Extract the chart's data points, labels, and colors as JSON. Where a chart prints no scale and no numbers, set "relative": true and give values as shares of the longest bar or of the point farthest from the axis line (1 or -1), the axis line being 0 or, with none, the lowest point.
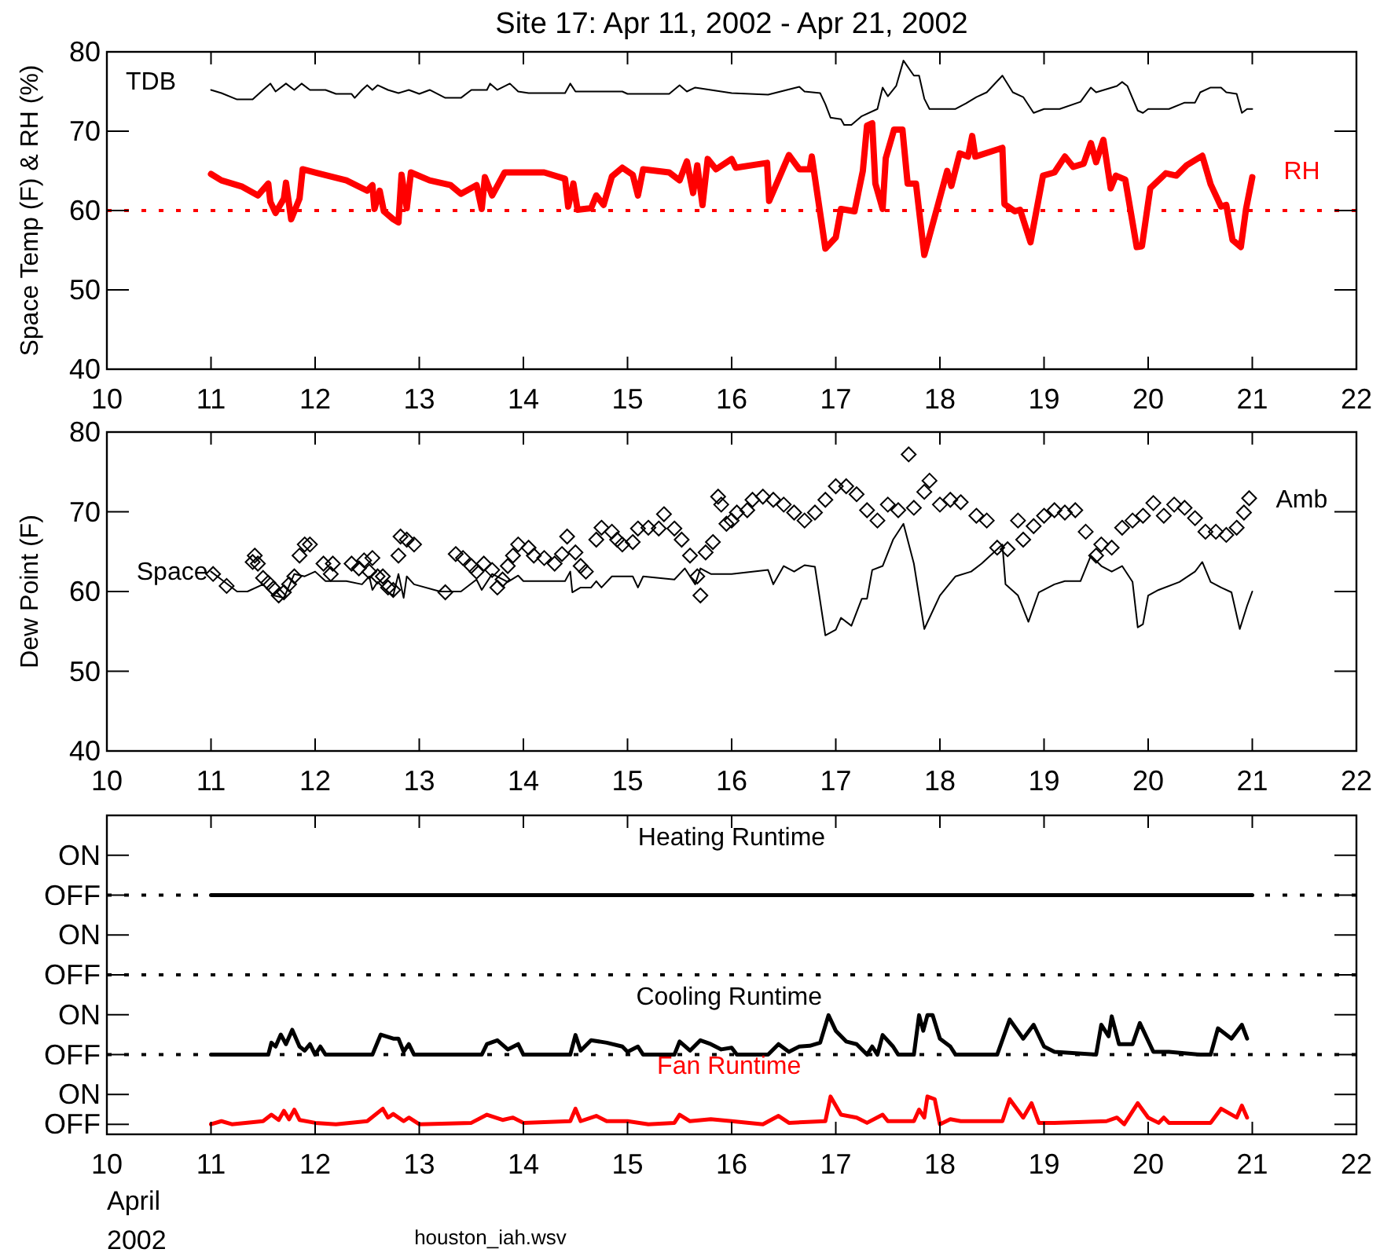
{
  "chart_data": [
    {
      "type": "line",
      "title": "Site 17: Apr 11, 2002 - Apr 21, 2002",
      "ylabel": "Space Temp (F) & RH (%)",
      "xlim": [
        10,
        22
      ],
      "xticks": [
        10,
        11,
        12,
        13,
        14,
        15,
        16,
        17,
        18,
        19,
        20,
        21,
        22
      ],
      "ylim": [
        40,
        80
      ],
      "yticks": [
        40,
        50,
        60,
        70,
        80
      ],
      "ref_lines": [
        {
          "axis": "y",
          "value": 60,
          "color": "#ff0000",
          "line_style": "dotted"
        }
      ],
      "series": [
        {
          "name": "TDB",
          "color": "#000000",
          "x": [
            11.0,
            11.1,
            11.25,
            11.4,
            11.5,
            11.57,
            11.62,
            11.72,
            11.8,
            11.87,
            11.95,
            12.1,
            12.2,
            12.35,
            12.38,
            12.45,
            12.5,
            12.55,
            12.6,
            12.7,
            12.8,
            12.9,
            13.0,
            13.1,
            13.25,
            13.4,
            13.5,
            13.65,
            13.68,
            13.75,
            13.87,
            13.95,
            14.05,
            14.4,
            14.45,
            14.5,
            14.95,
            15.0,
            15.4,
            15.5,
            15.57,
            15.65,
            16.0,
            16.35,
            16.5,
            16.65,
            16.7,
            16.85,
            16.9,
            16.95,
            17.05,
            17.08,
            17.15,
            17.25,
            17.4,
            17.45,
            17.5,
            17.58,
            17.65,
            17.75,
            17.8,
            17.85,
            17.9,
            18.15,
            18.25,
            18.35,
            18.45,
            18.6,
            18.7,
            18.8,
            18.9,
            19.0,
            19.15,
            19.35,
            19.45,
            19.5,
            19.7,
            19.75,
            19.8,
            19.9,
            19.95,
            20.0,
            20.2,
            20.35,
            20.45,
            20.5,
            20.6,
            20.7,
            20.75,
            20.85,
            20.9,
            20.95,
            21.0
          ],
          "values": [
            75.2,
            74.8,
            74.0,
            74.0,
            75.2,
            76.0,
            75.0,
            76.0,
            75.2,
            76.0,
            75.2,
            75.2,
            74.7,
            74.7,
            74.2,
            75.2,
            75.8,
            75.2,
            75.8,
            75.2,
            74.8,
            75.2,
            74.7,
            75.2,
            74.2,
            74.2,
            75.2,
            75.2,
            76.0,
            75.2,
            76.0,
            75.0,
            74.8,
            74.8,
            76.0,
            75.0,
            75.0,
            74.7,
            74.7,
            75.8,
            75.0,
            75.5,
            74.8,
            74.6,
            75.1,
            75.6,
            75.0,
            74.8,
            73.4,
            71.7,
            71.5,
            70.8,
            70.8,
            71.9,
            72.8,
            75.5,
            74.4,
            75.7,
            78.9,
            77.0,
            77.0,
            74.1,
            72.8,
            72.8,
            73.5,
            74.3,
            74.9,
            77.0,
            74.9,
            74.3,
            72.3,
            72.8,
            72.8,
            73.7,
            75.5,
            74.9,
            75.7,
            76.2,
            75.7,
            72.6,
            72.3,
            72.8,
            72.8,
            73.6,
            73.6,
            74.9,
            75.5,
            75.5,
            74.9,
            74.7,
            72.3,
            72.8,
            72.8
          ]
        },
        {
          "name": "RH",
          "color": "#ff0000",
          "x": [
            11.0,
            11.1,
            11.3,
            11.45,
            11.55,
            11.57,
            11.62,
            11.7,
            11.72,
            11.77,
            11.85,
            11.88,
            12.0,
            12.3,
            12.5,
            12.55,
            12.57,
            12.62,
            12.66,
            12.75,
            12.8,
            12.83,
            12.88,
            12.92,
            13.1,
            13.3,
            13.4,
            13.55,
            13.6,
            13.63,
            13.7,
            13.82,
            14.2,
            14.4,
            14.43,
            14.48,
            14.52,
            14.65,
            14.7,
            14.77,
            14.85,
            14.95,
            15.05,
            15.1,
            15.15,
            15.4,
            15.5,
            15.57,
            15.63,
            15.67,
            15.72,
            15.77,
            15.85,
            16.0,
            16.04,
            16.34,
            16.36,
            16.55,
            16.65,
            16.75,
            16.77,
            16.9,
            17.0,
            17.05,
            17.18,
            17.26,
            17.3,
            17.35,
            17.38,
            17.45,
            17.48,
            17.56,
            17.64,
            17.69,
            17.77,
            17.85,
            18.07,
            18.11,
            18.19,
            18.27,
            18.31,
            18.34,
            18.6,
            18.62,
            18.72,
            18.77,
            18.87,
            18.99,
            19.1,
            19.2,
            19.28,
            19.38,
            19.45,
            19.5,
            19.57,
            19.64,
            19.69,
            19.78,
            19.89,
            19.94,
            20.02,
            20.17,
            20.27,
            20.37,
            20.52,
            20.6,
            20.7,
            20.75,
            20.81,
            20.89,
            20.94,
            21.0
          ],
          "values": [
            64.6,
            63.8,
            63.0,
            61.9,
            63.4,
            61.1,
            59.7,
            61.5,
            63.5,
            58.9,
            61.5,
            65.2,
            64.8,
            63.8,
            62.5,
            63.2,
            60.2,
            62.5,
            59.9,
            58.9,
            58.5,
            64.5,
            60.3,
            64.8,
            63.8,
            63.2,
            62.1,
            63.2,
            60.2,
            64.2,
            61.9,
            64.8,
            64.8,
            64.0,
            60.5,
            63.4,
            60.1,
            60.3,
            61.9,
            60.7,
            64.3,
            65.4,
            64.5,
            61.9,
            65.2,
            64.8,
            63.8,
            66.2,
            62.2,
            65.7,
            60.7,
            66.5,
            65.2,
            66.5,
            65.4,
            66.0,
            61.2,
            67.0,
            65.2,
            65.2,
            66.8,
            55.2,
            56.6,
            60.2,
            59.9,
            65.0,
            70.7,
            71.0,
            63.4,
            60.2,
            66.6,
            70.2,
            70.2,
            63.4,
            63.4,
            54.4,
            65.0,
            63.1,
            67.2,
            66.8,
            69.4,
            66.8,
            67.9,
            60.8,
            59.9,
            60.1,
            56.0,
            64.4,
            64.8,
            66.8,
            65.5,
            65.9,
            68.5,
            66.1,
            68.9,
            62.8,
            64.4,
            63.9,
            55.4,
            55.5,
            62.8,
            64.7,
            64.4,
            65.7,
            66.9,
            63.3,
            60.5,
            60.7,
            56.3,
            55.4,
            60.2,
            64.2
          ]
        }
      ]
    },
    {
      "type": "line",
      "ylabel": "Dew Point (F)",
      "xlim": [
        10,
        22
      ],
      "xticks": [
        10,
        11,
        12,
        13,
        14,
        15,
        16,
        17,
        18,
        19,
        20,
        21,
        22
      ],
      "ylim": [
        40,
        80
      ],
      "yticks": [
        40,
        50,
        60,
        70,
        80
      ],
      "series": [
        {
          "name": "Space",
          "color": "#000000",
          "x": [
            11.0,
            11.1,
            11.25,
            11.35,
            11.5,
            11.6,
            11.7,
            11.8,
            11.9,
            12.0,
            12.1,
            12.3,
            12.45,
            12.52,
            12.55,
            12.6,
            12.7,
            12.75,
            12.8,
            12.85,
            12.88,
            12.95,
            13.2,
            13.4,
            13.55,
            13.6,
            13.7,
            13.85,
            13.95,
            14.0,
            14.4,
            14.45,
            14.47,
            14.55,
            14.65,
            14.7,
            14.75,
            14.85,
            15.05,
            15.1,
            15.15,
            15.45,
            15.55,
            15.65,
            15.7,
            15.8,
            16.0,
            16.35,
            16.4,
            16.5,
            16.6,
            16.7,
            16.8,
            16.9,
            17.0,
            17.05,
            17.15,
            17.25,
            17.3,
            17.35,
            17.45,
            17.55,
            17.65,
            17.75,
            17.85,
            18.0,
            18.15,
            18.3,
            18.4,
            18.55,
            18.6,
            18.63,
            18.75,
            18.85,
            18.95,
            19.1,
            19.2,
            19.35,
            19.45,
            19.55,
            19.65,
            19.75,
            19.85,
            19.9,
            19.95,
            20.0,
            20.1,
            20.3,
            20.45,
            20.52,
            20.6,
            20.7,
            20.8,
            20.88,
            20.95,
            21.0
          ],
          "values": [
            62.5,
            61.5,
            60.0,
            60.0,
            60.9,
            59.5,
            59.2,
            62.2,
            61.9,
            62.5,
            61.3,
            61.3,
            60.9,
            61.9,
            60.2,
            61.2,
            59.9,
            59.5,
            62.2,
            59.2,
            61.9,
            60.9,
            60.0,
            60.0,
            61.5,
            60.2,
            62.2,
            61.2,
            62.0,
            61.3,
            61.3,
            62.5,
            59.9,
            60.5,
            60.5,
            61.3,
            60.5,
            61.9,
            61.9,
            60.5,
            61.9,
            61.5,
            62.9,
            60.9,
            62.9,
            62.2,
            62.2,
            62.7,
            60.9,
            63.2,
            62.5,
            63.3,
            63.1,
            54.5,
            55.2,
            56.7,
            55.7,
            59.1,
            59.1,
            62.7,
            63.2,
            66.5,
            68.5,
            63.5,
            55.3,
            59.5,
            61.9,
            62.5,
            63.5,
            65.3,
            65.9,
            60.9,
            59.5,
            56.2,
            59.9,
            60.9,
            61.3,
            61.3,
            64.5,
            63.2,
            62.5,
            63.2,
            61.2,
            55.5,
            55.9,
            59.5,
            60.2,
            61.2,
            62.5,
            63.7,
            61.2,
            60.5,
            59.9,
            55.3,
            58.2,
            60.0
          ]
        },
        {
          "name": "Amb",
          "type": "scatter",
          "marker": "diamond",
          "color": "#000000",
          "x": [
            11.02,
            11.15,
            11.4,
            11.42,
            11.45,
            11.5,
            11.55,
            11.6,
            11.65,
            11.7,
            11.75,
            11.8,
            11.85,
            11.9,
            11.95,
            12.08,
            12.15,
            12.17,
            12.35,
            12.42,
            12.47,
            12.52,
            12.55,
            12.6,
            12.65,
            12.7,
            12.75,
            12.8,
            12.82,
            12.88,
            12.95,
            13.25,
            13.35,
            13.42,
            13.5,
            13.55,
            13.62,
            13.7,
            13.75,
            13.8,
            13.85,
            13.9,
            13.95,
            14.05,
            14.1,
            14.2,
            14.3,
            14.37,
            14.42,
            14.5,
            14.55,
            14.6,
            14.7,
            14.75,
            14.85,
            14.9,
            14.95,
            15.05,
            15.1,
            15.2,
            15.3,
            15.35,
            15.45,
            15.52,
            15.6,
            15.67,
            15.7,
            15.75,
            15.82,
            15.87,
            15.9,
            15.95,
            16.0,
            16.05,
            16.15,
            16.2,
            16.3,
            16.4,
            16.5,
            16.6,
            16.7,
            16.8,
            16.9,
            17.0,
            17.1,
            17.2,
            17.3,
            17.4,
            17.5,
            17.6,
            17.7,
            17.75,
            17.85,
            17.9,
            18.0,
            18.1,
            18.2,
            18.35,
            18.45,
            18.55,
            18.65,
            18.75,
            18.8,
            18.9,
            19.0,
            19.1,
            19.2,
            19.3,
            19.4,
            19.5,
            19.55,
            19.65,
            19.75,
            19.85,
            19.95,
            20.05,
            20.15,
            20.25,
            20.35,
            20.45,
            20.55,
            20.65,
            20.75,
            20.85,
            20.92,
            20.97
          ],
          "values": [
            62.2,
            60.7,
            63.7,
            64.5,
            63.5,
            61.7,
            61.1,
            60.4,
            59.5,
            59.9,
            60.9,
            61.9,
            64.5,
            65.9,
            65.9,
            63.5,
            62.2,
            63.5,
            63.5,
            62.9,
            63.9,
            62.5,
            64.2,
            61.9,
            61.9,
            60.5,
            60.2,
            64.5,
            66.9,
            66.5,
            65.9,
            59.9,
            64.7,
            64.2,
            63.2,
            62.5,
            63.5,
            62.7,
            60.5,
            61.5,
            63.2,
            64.5,
            65.9,
            65.5,
            64.5,
            64.2,
            63.5,
            64.7,
            66.9,
            64.9,
            63.2,
            62.5,
            66.5,
            68.0,
            67.5,
            66.5,
            65.9,
            66.2,
            67.9,
            68.0,
            67.9,
            69.7,
            67.9,
            66.5,
            64.5,
            61.9,
            59.5,
            64.9,
            66.2,
            71.9,
            70.9,
            68.5,
            68.9,
            69.9,
            70.2,
            71.5,
            71.9,
            71.5,
            70.9,
            69.9,
            68.9,
            69.9,
            71.5,
            73.2,
            73.2,
            72.2,
            70.2,
            68.9,
            70.9,
            70.2,
            77.2,
            70.5,
            72.5,
            73.9,
            70.9,
            71.5,
            71.2,
            69.5,
            68.9,
            65.5,
            65.3,
            68.9,
            66.5,
            68.2,
            69.5,
            70.2,
            69.9,
            70.2,
            67.5,
            64.5,
            65.9,
            65.5,
            68.0,
            68.9,
            69.5,
            71.1,
            69.5,
            70.9,
            70.5,
            69.2,
            67.5,
            67.5,
            67.1,
            68.0,
            69.9,
            71.7
          ]
        }
      ]
    },
    {
      "type": "line",
      "xlabel": "April 2002",
      "relative": true,
      "annotations": [
        "ON",
        "OFF",
        "ON",
        "OFF",
        "ON",
        "OFF",
        "ON",
        "OFF",
        "houston_iah.wsv"
      ],
      "xlim": [
        10,
        22
      ],
      "xticks": [
        10,
        11,
        12,
        13,
        14,
        15,
        16,
        17,
        18,
        19,
        20,
        21,
        22
      ],
      "ref_lines": [
        {
          "axis": "y",
          "value": 1,
          "color": "#000000",
          "line_style": "dotted"
        },
        {
          "axis": "y",
          "value": 0.667,
          "color": "#000000",
          "line_style": "dotted"
        },
        {
          "axis": "y",
          "value": 0.333,
          "color": "#000000",
          "line_style": "dotted"
        }
      ],
      "series": [
        {
          "name": "Heating Runtime",
          "color": "#000000",
          "x": [
            11,
            21
          ],
          "values": [
            1,
            1
          ]
        },
        {
          "name": "Cooling Runtime",
          "color": "#000000",
          "x": [
            11.0,
            11.55,
            11.58,
            11.62,
            11.67,
            11.72,
            11.78,
            11.85,
            11.9,
            11.95,
            12.0,
            12.05,
            12.1,
            12.55,
            12.63,
            12.75,
            12.8,
            12.85,
            12.9,
            12.95,
            13.6,
            13.65,
            13.75,
            13.85,
            13.95,
            14.0,
            14.45,
            14.5,
            14.55,
            14.65,
            14.8,
            14.95,
            15.0,
            15.1,
            15.15,
            15.45,
            15.5,
            15.6,
            15.7,
            15.8,
            15.9,
            16.0,
            16.05,
            16.35,
            16.45,
            16.55,
            16.65,
            16.75,
            16.85,
            16.93,
            17.0,
            17.1,
            17.2,
            17.3,
            17.35,
            17.4,
            17.45,
            17.55,
            17.6,
            17.75,
            17.8,
            17.84,
            17.88,
            17.93,
            18.0,
            18.1,
            18.15,
            18.55,
            18.67,
            18.8,
            18.9,
            19.0,
            19.1,
            19.5,
            19.55,
            19.62,
            19.65,
            19.72,
            19.85,
            19.92,
            20.05,
            20.2,
            20.5,
            20.6,
            20.67,
            20.8,
            20.9,
            20.95
          ],
          "values": [
            0.333,
            0.333,
            0.383,
            0.367,
            0.417,
            0.377,
            0.437,
            0.367,
            0.35,
            0.377,
            0.333,
            0.367,
            0.333,
            0.333,
            0.417,
            0.4,
            0.4,
            0.345,
            0.377,
            0.333,
            0.333,
            0.377,
            0.393,
            0.355,
            0.377,
            0.333,
            0.333,
            0.415,
            0.35,
            0.393,
            0.383,
            0.367,
            0.345,
            0.367,
            0.333,
            0.333,
            0.388,
            0.35,
            0.393,
            0.377,
            0.355,
            0.362,
            0.333,
            0.333,
            0.377,
            0.345,
            0.367,
            0.37,
            0.383,
            0.498,
            0.433,
            0.388,
            0.377,
            0.333,
            0.367,
            0.333,
            0.415,
            0.367,
            0.333,
            0.333,
            0.498,
            0.433,
            0.498,
            0.498,
            0.4,
            0.367,
            0.333,
            0.333,
            0.48,
            0.4,
            0.458,
            0.367,
            0.345,
            0.333,
            0.458,
            0.41,
            0.493,
            0.377,
            0.377,
            0.465,
            0.345,
            0.345,
            0.333,
            0.333,
            0.443,
            0.4,
            0.458,
            0.4
          ]
        },
        {
          "name": "Fan Runtime",
          "color": "#ff0000",
          "x": [
            11.0,
            11.1,
            11.2,
            11.5,
            11.58,
            11.65,
            11.7,
            11.75,
            11.8,
            11.85,
            12.0,
            12.2,
            12.5,
            12.65,
            12.7,
            12.75,
            12.85,
            12.9,
            13.0,
            13.5,
            13.65,
            13.8,
            13.9,
            14.0,
            14.45,
            14.5,
            14.55,
            14.7,
            14.8,
            15.0,
            15.2,
            15.45,
            15.5,
            15.6,
            15.8,
            16.0,
            16.3,
            16.45,
            16.55,
            16.9,
            16.95,
            17.05,
            17.2,
            17.3,
            17.45,
            17.5,
            17.75,
            17.8,
            17.85,
            17.88,
            17.95,
            18.0,
            18.1,
            18.2,
            18.6,
            18.67,
            18.8,
            18.88,
            18.95,
            19.1,
            19.6,
            19.7,
            19.77,
            19.9,
            20.0,
            20.1,
            20.15,
            20.2,
            20.6,
            20.7,
            20.85,
            20.9,
            20.95
          ],
          "values": [
            0.042,
            0.055,
            0.042,
            0.055,
            0.082,
            0.06,
            0.098,
            0.063,
            0.103,
            0.06,
            0.048,
            0.042,
            0.055,
            0.107,
            0.07,
            0.085,
            0.055,
            0.07,
            0.042,
            0.048,
            0.082,
            0.06,
            0.07,
            0.048,
            0.055,
            0.107,
            0.055,
            0.077,
            0.055,
            0.055,
            0.042,
            0.048,
            0.082,
            0.055,
            0.063,
            0.055,
            0.042,
            0.077,
            0.048,
            0.055,
            0.158,
            0.082,
            0.07,
            0.048,
            0.082,
            0.055,
            0.055,
            0.103,
            0.07,
            0.158,
            0.147,
            0.042,
            0.063,
            0.055,
            0.055,
            0.147,
            0.07,
            0.13,
            0.048,
            0.048,
            0.055,
            0.07,
            0.042,
            0.13,
            0.07,
            0.048,
            0.07,
            0.048,
            0.048,
            0.107,
            0.07,
            0.12,
            0.07
          ]
        }
      ]
    }
  ]
}
